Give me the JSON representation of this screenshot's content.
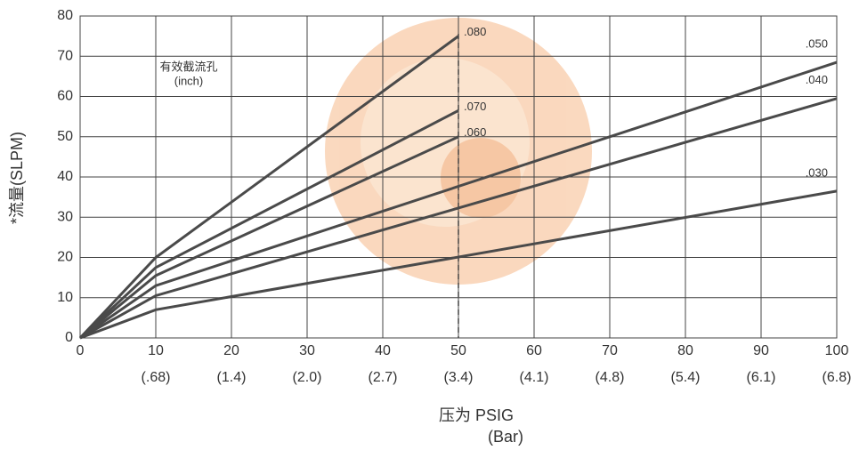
{
  "chart_data": {
    "type": "line",
    "y_label": "*流量(SLPM)",
    "x_label": [
      "压为 PSIG",
      "(Bar)"
    ],
    "legend_title": [
      "有效截流孔",
      "(inch)"
    ],
    "xlim": [
      0,
      100
    ],
    "ylim": [
      0,
      80
    ],
    "xticks": [
      0,
      10,
      20,
      30,
      40,
      50,
      60,
      70,
      80,
      90,
      100
    ],
    "secondary_xticks": [
      {
        "value": 10,
        "label": "(.68)"
      },
      {
        "value": 20,
        "label": "(1.4)"
      },
      {
        "value": 30,
        "label": "(2.0)"
      },
      {
        "value": 40,
        "label": "(2.7)"
      },
      {
        "value": 50,
        "label": "(3.4)"
      },
      {
        "value": 60,
        "label": "(4.1)"
      },
      {
        "value": 70,
        "label": "(4.8)"
      },
      {
        "value": 80,
        "label": "(5.4)"
      },
      {
        "value": 90,
        "label": "(6.1)"
      },
      {
        "value": 100,
        "label": "(6.8)"
      }
    ],
    "yticks": [
      0,
      10,
      20,
      30,
      40,
      50,
      60,
      70,
      80
    ],
    "grid": true,
    "vlines": [
      50
    ],
    "series": [
      {
        "name": ".080",
        "color": "#4a4a4a",
        "x": [
          0,
          10,
          50
        ],
        "values": [
          0,
          20,
          75
        ]
      },
      {
        "name": ".070",
        "color": "#4a4a4a",
        "x": [
          0,
          10,
          50
        ],
        "values": [
          0,
          17.5,
          56.5
        ]
      },
      {
        "name": ".060",
        "color": "#4a4a4a",
        "x": [
          0,
          10,
          50
        ],
        "values": [
          0,
          15.5,
          50
        ]
      },
      {
        "name": ".050",
        "color": "#4a4a4a",
        "x": [
          0,
          10,
          100
        ],
        "values": [
          0,
          13,
          68.5
        ]
      },
      {
        "name": ".040",
        "color": "#4a4a4a",
        "x": [
          0,
          10,
          100
        ],
        "values": [
          0,
          10.5,
          59.5
        ]
      },
      {
        "name": ".030",
        "color": "#4a4a4a",
        "x": [
          0,
          10,
          100
        ],
        "values": [
          0,
          7,
          36.5
        ]
      }
    ]
  }
}
